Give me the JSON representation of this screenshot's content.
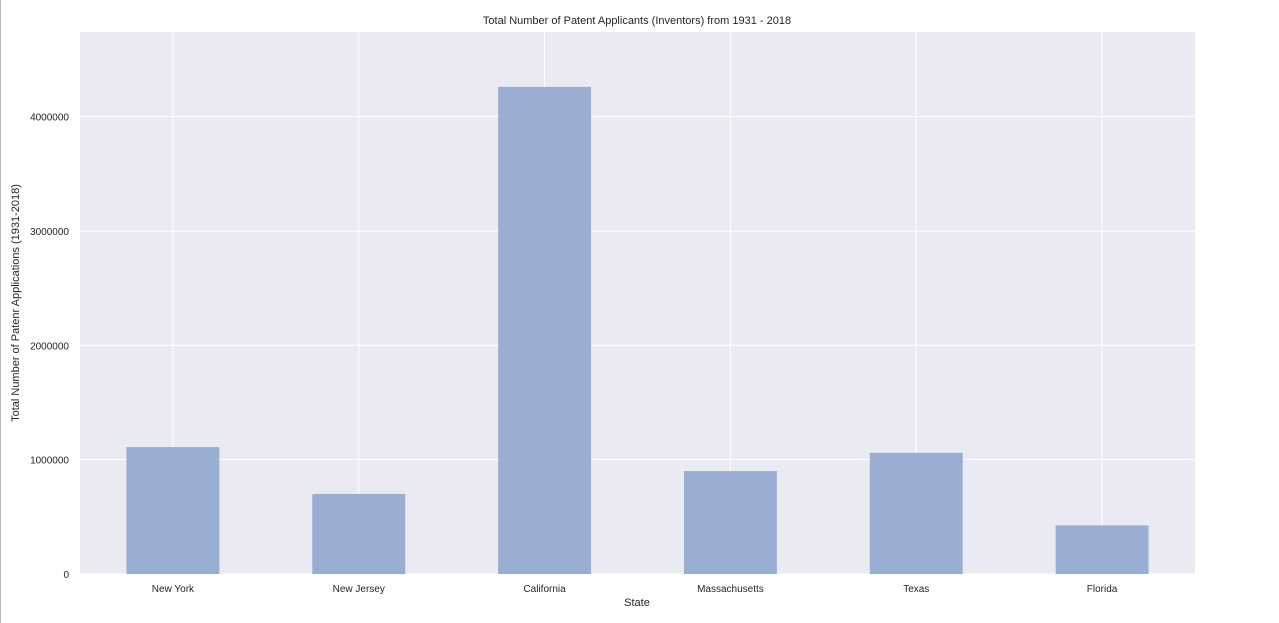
{
  "chart_data": {
    "type": "bar",
    "title": "Total Number of Patent Applicants (Inventors) from 1931 - 2018",
    "xlabel": "State",
    "ylabel": "Total Number of Patenr Applications (1931-2018)",
    "categories": [
      "New York",
      "New Jersey",
      "California",
      "Massachusetts",
      "Texas",
      "Florida"
    ],
    "values": [
      1110000,
      700000,
      4260000,
      900000,
      1060000,
      425000
    ],
    "ylim": [
      0,
      4740000
    ],
    "yticks": [
      0,
      1000000,
      2000000,
      3000000,
      4000000
    ],
    "ytick_labels": [
      "0",
      "1000000",
      "2000000",
      "3000000",
      "4000000"
    ],
    "grid": true,
    "colors": {
      "bar": "#9aadd2",
      "plot_background": "#eaeaf2",
      "grid": "#ffffff",
      "text": "#262626"
    }
  }
}
